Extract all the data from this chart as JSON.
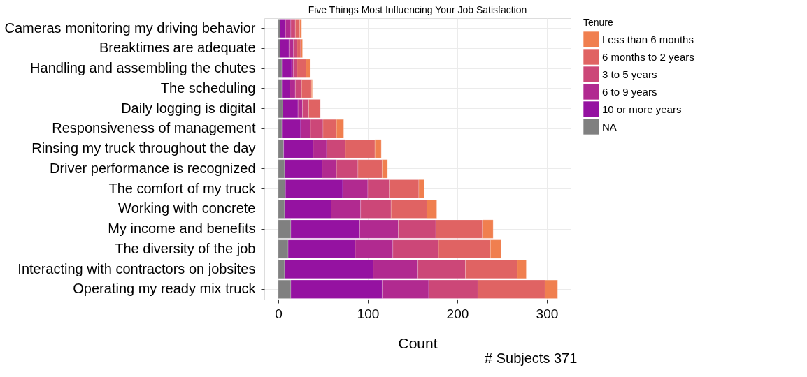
{
  "chart_data": {
    "type": "bar",
    "orientation": "horizontal",
    "stacked": true,
    "title": "Five Things Most Influencing Your Job Satisfaction",
    "xlabel": "Count",
    "legend_title": "Tenure",
    "legend": "right",
    "grid": true,
    "categories": [
      "Cameras monitoring my driving behavior",
      "Breaktimes are adequate",
      "Handling and assembling the chutes",
      "The scheduling",
      "Daily logging is digital",
      "Responsiveness of management",
      "Rinsing my truck throughout the day",
      "Driver performance is recognized",
      "The comfort of my truck",
      "Working with concrete",
      "My income and benefits",
      "The diversity of the job",
      "Interacting with contractors on jobsites",
      "Operating my ready mix truck"
    ],
    "xlim": [
      -15.6,
      326.6
    ],
    "xticks": [
      0,
      100,
      200,
      300
    ],
    "series": [
      {
        "name": "NA",
        "color": "#808080",
        "values": [
          2,
          2,
          4,
          4,
          5,
          4,
          6,
          7,
          8,
          7,
          14,
          11,
          7,
          14
        ]
      },
      {
        "name": "10 or more years",
        "color": "#9512a1",
        "values": [
          6,
          10,
          11,
          9,
          17,
          21,
          33,
          42,
          64,
          52,
          77,
          75,
          99,
          102
        ]
      },
      {
        "name": "6 to 9 years",
        "color": "#b12a90",
        "values": [
          6,
          5,
          2,
          6,
          5,
          11,
          15,
          16,
          28,
          33,
          43,
          42,
          50,
          52
        ]
      },
      {
        "name": "3 to 5 years",
        "color": "#cc4778",
        "values": [
          5,
          4,
          4,
          7,
          7,
          14,
          21,
          24,
          24,
          34,
          42,
          51,
          53,
          55
        ]
      },
      {
        "name": "6 months to 2 years",
        "color": "#e06363",
        "values": [
          5,
          4,
          10,
          11,
          13,
          15,
          33,
          27,
          33,
          40,
          52,
          58,
          58,
          75
        ]
      },
      {
        "name": "Less than 6 months",
        "color": "#f07f4f",
        "values": [
          2,
          2,
          5,
          1,
          0,
          8,
          7,
          6,
          6,
          11,
          12,
          12,
          10,
          14
        ]
      }
    ],
    "annotations": [
      "# Subjects 371"
    ]
  }
}
